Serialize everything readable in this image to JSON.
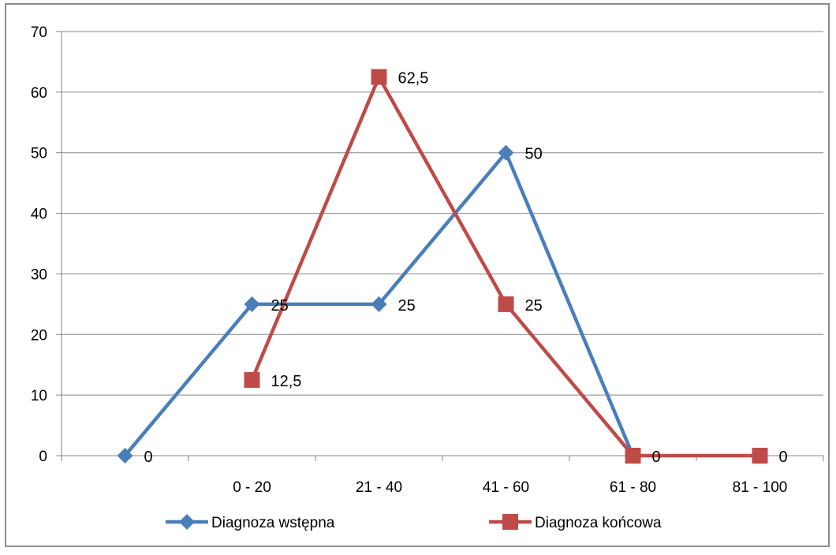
{
  "chart_data": {
    "type": "line",
    "categories": [
      "",
      "0 - 20",
      "21 - 40",
      "41 - 60",
      "61 - 80",
      "81 - 100"
    ],
    "ylim": [
      0,
      70
    ],
    "yticks": [
      "0",
      "10",
      "20",
      "30",
      "40",
      "50",
      "60",
      "70"
    ],
    "grid": true,
    "legend_position": "bottom",
    "series": [
      {
        "name": "Diagnoza wstępna",
        "color": "#4a7ebb",
        "marker": "diamond",
        "values": [
          0,
          25,
          25,
          50,
          0,
          null
        ],
        "labels": [
          "0",
          "25",
          "25",
          "50",
          "",
          ""
        ]
      },
      {
        "name": "Diagnoza końcowa",
        "color": "#be4b48",
        "marker": "square",
        "values": [
          null,
          12.5,
          62.5,
          25,
          0,
          0
        ],
        "labels": [
          "",
          "12,5",
          "62,5",
          "25",
          "0",
          "0"
        ]
      }
    ]
  }
}
